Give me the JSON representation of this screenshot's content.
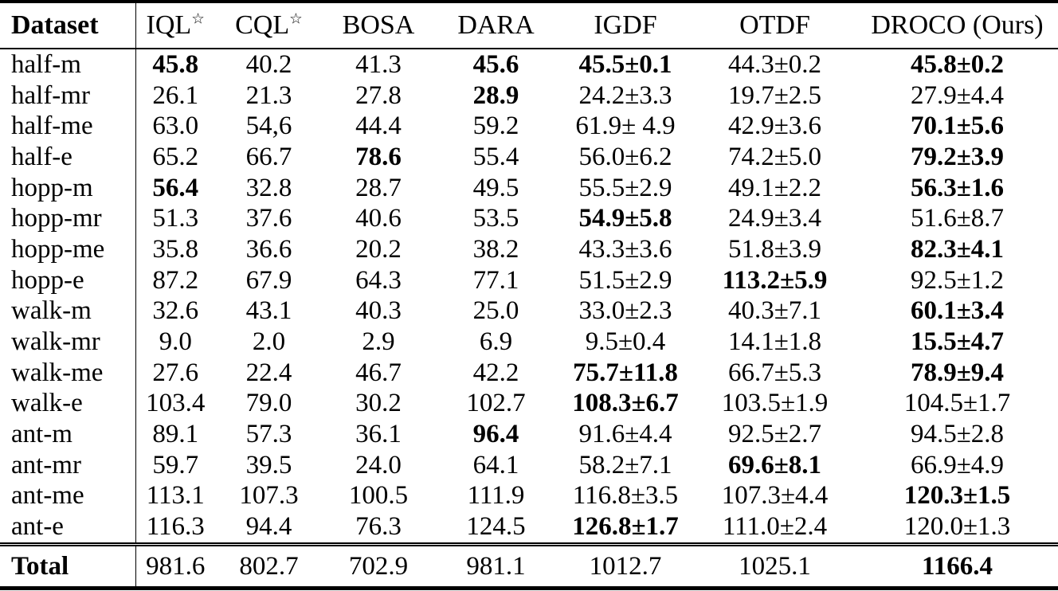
{
  "table": {
    "headers": [
      {
        "text": "Dataset",
        "sup": "",
        "bold": true
      },
      {
        "text": "IQL",
        "sup": "☆",
        "bold": false
      },
      {
        "text": "CQL",
        "sup": "☆",
        "bold": false
      },
      {
        "text": "BOSA",
        "sup": "",
        "bold": false
      },
      {
        "text": "DARA",
        "sup": "",
        "bold": false
      },
      {
        "text": "IGDF",
        "sup": "",
        "bold": false
      },
      {
        "text": "OTDF",
        "sup": "",
        "bold": false
      },
      {
        "text": "DROCO (Ours)",
        "sup": "",
        "bold": false
      }
    ],
    "rows": [
      {
        "label": "half-m",
        "values": [
          {
            "t": "45.8",
            "b": true
          },
          {
            "t": "40.2",
            "b": false
          },
          {
            "t": "41.3",
            "b": false
          },
          {
            "t": "45.6",
            "b": true
          },
          {
            "t": "45.5±0.1",
            "b": true
          },
          {
            "t": "44.3±0.2",
            "b": false
          },
          {
            "t": "45.8±0.2",
            "b": true
          }
        ]
      },
      {
        "label": "half-mr",
        "values": [
          {
            "t": "26.1",
            "b": false
          },
          {
            "t": "21.3",
            "b": false
          },
          {
            "t": "27.8",
            "b": false
          },
          {
            "t": "28.9",
            "b": true
          },
          {
            "t": "24.2±3.3",
            "b": false
          },
          {
            "t": "19.7±2.5",
            "b": false
          },
          {
            "t": "27.9±4.4",
            "b": false
          }
        ]
      },
      {
        "label": "half-me",
        "values": [
          {
            "t": "63.0",
            "b": false
          },
          {
            "t": "54,6",
            "b": false
          },
          {
            "t": "44.4",
            "b": false
          },
          {
            "t": "59.2",
            "b": false
          },
          {
            "t": "61.9± 4.9",
            "b": false
          },
          {
            "t": "42.9±3.6",
            "b": false
          },
          {
            "t": "70.1±5.6",
            "b": true
          }
        ]
      },
      {
        "label": "half-e",
        "values": [
          {
            "t": "65.2",
            "b": false
          },
          {
            "t": "66.7",
            "b": false
          },
          {
            "t": "78.6",
            "b": true
          },
          {
            "t": "55.4",
            "b": false
          },
          {
            "t": "56.0±6.2",
            "b": false
          },
          {
            "t": "74.2±5.0",
            "b": false
          },
          {
            "t": "79.2±3.9",
            "b": true
          }
        ]
      },
      {
        "label": "hopp-m",
        "values": [
          {
            "t": "56.4",
            "b": true
          },
          {
            "t": "32.8",
            "b": false
          },
          {
            "t": "28.7",
            "b": false
          },
          {
            "t": "49.5",
            "b": false
          },
          {
            "t": "55.5±2.9",
            "b": false
          },
          {
            "t": "49.1±2.2",
            "b": false
          },
          {
            "t": "56.3±1.6",
            "b": true
          }
        ]
      },
      {
        "label": "hopp-mr",
        "values": [
          {
            "t": "51.3",
            "b": false
          },
          {
            "t": "37.6",
            "b": false
          },
          {
            "t": "40.6",
            "b": false
          },
          {
            "t": "53.5",
            "b": false
          },
          {
            "t": "54.9±5.8",
            "b": true
          },
          {
            "t": "24.9±3.4",
            "b": false
          },
          {
            "t": "51.6±8.7",
            "b": false
          }
        ]
      },
      {
        "label": "hopp-me",
        "values": [
          {
            "t": "35.8",
            "b": false
          },
          {
            "t": "36.6",
            "b": false
          },
          {
            "t": "20.2",
            "b": false
          },
          {
            "t": "38.2",
            "b": false
          },
          {
            "t": "43.3±3.6",
            "b": false
          },
          {
            "t": "51.8±3.9",
            "b": false
          },
          {
            "t": "82.3±4.1",
            "b": true
          }
        ]
      },
      {
        "label": "hopp-e",
        "values": [
          {
            "t": "87.2",
            "b": false
          },
          {
            "t": "67.9",
            "b": false
          },
          {
            "t": "64.3",
            "b": false
          },
          {
            "t": "77.1",
            "b": false
          },
          {
            "t": "51.5±2.9",
            "b": false
          },
          {
            "t": "113.2±5.9",
            "b": true
          },
          {
            "t": "92.5±1.2",
            "b": false
          }
        ]
      },
      {
        "label": "walk-m",
        "values": [
          {
            "t": "32.6",
            "b": false
          },
          {
            "t": "43.1",
            "b": false
          },
          {
            "t": "40.3",
            "b": false
          },
          {
            "t": "25.0",
            "b": false
          },
          {
            "t": "33.0±2.3",
            "b": false
          },
          {
            "t": "40.3±7.1",
            "b": false
          },
          {
            "t": "60.1±3.4",
            "b": true
          }
        ]
      },
      {
        "label": "walk-mr",
        "values": [
          {
            "t": "9.0",
            "b": false
          },
          {
            "t": "2.0",
            "b": false
          },
          {
            "t": "2.9",
            "b": false
          },
          {
            "t": "6.9",
            "b": false
          },
          {
            "t": "9.5±0.4",
            "b": false
          },
          {
            "t": "14.1±1.8",
            "b": false
          },
          {
            "t": "15.5±4.7",
            "b": true
          }
        ]
      },
      {
        "label": "walk-me",
        "values": [
          {
            "t": "27.6",
            "b": false
          },
          {
            "t": "22.4",
            "b": false
          },
          {
            "t": "46.7",
            "b": false
          },
          {
            "t": "42.2",
            "b": false
          },
          {
            "t": "75.7±11.8",
            "b": true
          },
          {
            "t": "66.7±5.3",
            "b": false
          },
          {
            "t": "78.9±9.4",
            "b": true
          }
        ]
      },
      {
        "label": "walk-e",
        "values": [
          {
            "t": "103.4",
            "b": false
          },
          {
            "t": "79.0",
            "b": false
          },
          {
            "t": "30.2",
            "b": false
          },
          {
            "t": "102.7",
            "b": false
          },
          {
            "t": "108.3±6.7",
            "b": true
          },
          {
            "t": "103.5±1.9",
            "b": false
          },
          {
            "t": "104.5±1.7",
            "b": false
          }
        ]
      },
      {
        "label": "ant-m",
        "values": [
          {
            "t": "89.1",
            "b": false
          },
          {
            "t": "57.3",
            "b": false
          },
          {
            "t": "36.1",
            "b": false
          },
          {
            "t": "96.4",
            "b": true
          },
          {
            "t": "91.6±4.4",
            "b": false
          },
          {
            "t": "92.5±2.7",
            "b": false
          },
          {
            "t": "94.5±2.8",
            "b": false
          }
        ]
      },
      {
        "label": "ant-mr",
        "values": [
          {
            "t": "59.7",
            "b": false
          },
          {
            "t": "39.5",
            "b": false
          },
          {
            "t": "24.0",
            "b": false
          },
          {
            "t": "64.1",
            "b": false
          },
          {
            "t": "58.2±7.1",
            "b": false
          },
          {
            "t": "69.6±8.1",
            "b": true
          },
          {
            "t": "66.9±4.9",
            "b": false
          }
        ]
      },
      {
        "label": "ant-me",
        "values": [
          {
            "t": "113.1",
            "b": false
          },
          {
            "t": "107.3",
            "b": false
          },
          {
            "t": "100.5",
            "b": false
          },
          {
            "t": "111.9",
            "b": false
          },
          {
            "t": "116.8±3.5",
            "b": false
          },
          {
            "t": "107.3±4.4",
            "b": false
          },
          {
            "t": "120.3±1.5",
            "b": true
          }
        ]
      },
      {
        "label": "ant-e",
        "values": [
          {
            "t": "116.3",
            "b": false
          },
          {
            "t": "94.4",
            "b": false
          },
          {
            "t": "76.3",
            "b": false
          },
          {
            "t": "124.5",
            "b": false
          },
          {
            "t": "126.8±1.7",
            "b": true
          },
          {
            "t": "111.0±2.4",
            "b": false
          },
          {
            "t": "120.0±1.3",
            "b": false
          }
        ]
      }
    ],
    "total": {
      "label": "Total",
      "values": [
        {
          "t": "981.6",
          "b": false
        },
        {
          "t": "802.7",
          "b": false
        },
        {
          "t": "702.9",
          "b": false
        },
        {
          "t": "981.1",
          "b": false
        },
        {
          "t": "1012.7",
          "b": false
        },
        {
          "t": "1025.1",
          "b": false
        },
        {
          "t": "1166.4",
          "b": true
        }
      ]
    }
  }
}
